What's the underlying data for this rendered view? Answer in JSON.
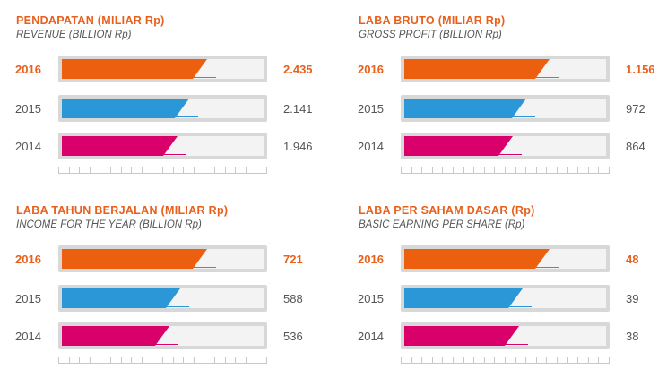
{
  "chart_data": [
    {
      "type": "bar",
      "title": "PENDAPATAN (MILIAR Rp)",
      "subtitle": "REVENUE (BILLION Rp)",
      "categories": [
        "2016",
        "2015",
        "2014"
      ],
      "values": [
        2435,
        2141,
        1946
      ],
      "labels": [
        "2.435",
        "2.141",
        "1.946"
      ]
    },
    {
      "type": "bar",
      "title": "LABA BRUTO (MILIAR Rp)",
      "subtitle": "GROSS PROFIT (BILLION Rp)",
      "categories": [
        "2016",
        "2015",
        "2014"
      ],
      "values": [
        1156,
        972,
        864
      ],
      "labels": [
        "1.156",
        "972",
        "864"
      ]
    },
    {
      "type": "bar",
      "title": "LABA TAHUN BERJALAN (MILIAR Rp)",
      "subtitle": "INCOME FOR THE YEAR (BILLION Rp)",
      "categories": [
        "2016",
        "2015",
        "2014"
      ],
      "values": [
        721,
        588,
        536
      ],
      "labels": [
        "721",
        "588",
        "536"
      ]
    },
    {
      "type": "bar",
      "title": "LABA PER SAHAM DASAR (Rp)",
      "subtitle": "BASIC EARNING PER SHARE (Rp)",
      "categories": [
        "2016",
        "2015",
        "2014"
      ],
      "values": [
        48,
        39,
        38
      ],
      "labels": [
        "48",
        "39",
        "38"
      ]
    }
  ],
  "colors": {
    "2016": "#ec5f0f",
    "2015": "#2b97d6",
    "2014": "#d9006c",
    "accent": "#e8601c"
  }
}
